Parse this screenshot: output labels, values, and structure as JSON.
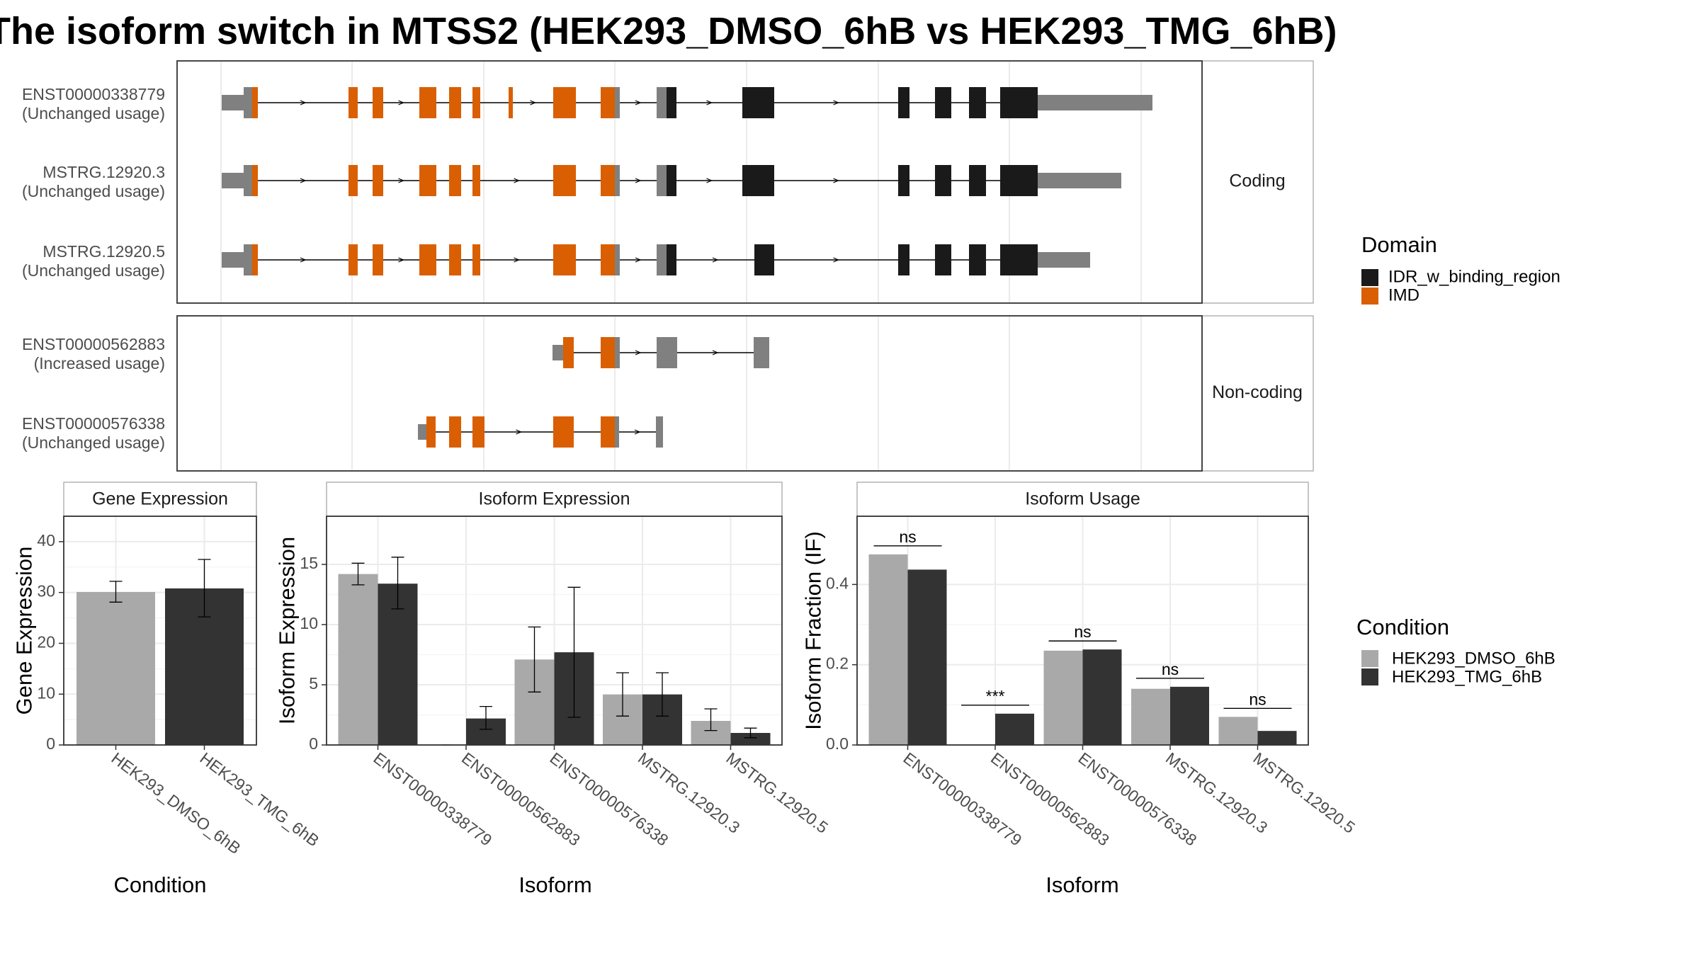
{
  "title": "The isoform switch in MTSS2 (HEK293_DMSO_6hB vs HEK293_TMG_6hB)",
  "colors": {
    "idr": "#1a1a1a",
    "imd": "#d95f02",
    "utr": "#808080",
    "dmso": "#a9a9a9",
    "tmg": "#333333",
    "frame": "#333333",
    "grid": "#ebebeb",
    "strip": "#ffffff"
  },
  "structure": {
    "facets": [
      "Coding",
      "Non-coding"
    ],
    "transcripts": [
      {
        "id": "ENST00000338779",
        "usage": "(Unchanged usage)",
        "facet": "Coding"
      },
      {
        "id": "MSTRG.12920.3",
        "usage": "(Unchanged usage)",
        "facet": "Coding"
      },
      {
        "id": "MSTRG.12920.5",
        "usage": "(Unchanged usage)",
        "facet": "Coding"
      },
      {
        "id": "ENST00000562883",
        "usage": "(Increased usage)",
        "facet": "Non-coding"
      },
      {
        "id": "ENST00000576338",
        "usage": "(Unchanged usage)",
        "facet": "Non-coding"
      }
    ],
    "domain_legend": {
      "title": "Domain",
      "items": [
        "IDR_w_binding_region",
        "IMD"
      ]
    }
  },
  "condition_legend": {
    "title": "Condition",
    "items": [
      "HEK293_DMSO_6hB",
      "HEK293_TMG_6hB"
    ]
  },
  "chart_data": [
    {
      "type": "bar",
      "strip": "Gene Expression",
      "xlabel": "Condition",
      "ylabel": "Gene Expression",
      "ylim": [
        0,
        45
      ],
      "yticks": [
        "0",
        "10",
        "20",
        "30",
        "40"
      ],
      "categories": [
        "HEK293_DMSO_6hB",
        "HEK293_TMG_6hB"
      ],
      "values": [
        30.1,
        30.8
      ],
      "error": [
        [
          28.1,
          32.2
        ],
        [
          25.2,
          36.5
        ]
      ],
      "grid": true
    },
    {
      "type": "bar",
      "strip": "Isoform Expression",
      "xlabel": "Isoform",
      "ylabel": "Isoform Expression",
      "ylim": [
        0,
        19
      ],
      "yticks": [
        "0",
        "5",
        "10",
        "15"
      ],
      "categories": [
        "ENST00000338779",
        "ENST00000562883",
        "ENST00000576338",
        "MSTRG.12920.3",
        "MSTRG.12920.5"
      ],
      "series": [
        {
          "name": "HEK293_DMSO_6hB",
          "values": [
            14.2,
            0.0,
            7.1,
            4.2,
            2.0
          ],
          "error": [
            [
              13.3,
              15.1
            ],
            [
              0,
              0
            ],
            [
              4.4,
              9.8
            ],
            [
              2.4,
              6.0
            ],
            [
              1.2,
              3.0
            ]
          ]
        },
        {
          "name": "HEK293_TMG_6hB",
          "values": [
            13.4,
            2.2,
            7.7,
            4.2,
            1.0
          ],
          "error": [
            [
              11.3,
              15.6
            ],
            [
              1.3,
              3.2
            ],
            [
              2.3,
              13.1
            ],
            [
              2.4,
              6.0
            ],
            [
              0.6,
              1.4
            ]
          ]
        }
      ],
      "grid": true
    },
    {
      "type": "bar",
      "strip": "Isoform Usage",
      "xlabel": "Isoform",
      "ylabel": "Isoform Fraction (IF)",
      "ylim": [
        0,
        0.57
      ],
      "yticks": [
        "0.0",
        "0.2",
        "0.4"
      ],
      "categories": [
        "ENST00000338779",
        "ENST00000562883",
        "ENST00000576338",
        "MSTRG.12920.3",
        "MSTRG.12920.5"
      ],
      "series": [
        {
          "name": "HEK293_DMSO_6hB",
          "values": [
            0.475,
            0.0,
            0.235,
            0.14,
            0.07
          ]
        },
        {
          "name": "HEK293_TMG_6hB",
          "values": [
            0.437,
            0.078,
            0.238,
            0.145,
            0.035
          ]
        }
      ],
      "annotations": [
        "ns",
        "***",
        "ns",
        "ns",
        "ns"
      ],
      "grid": true
    }
  ]
}
